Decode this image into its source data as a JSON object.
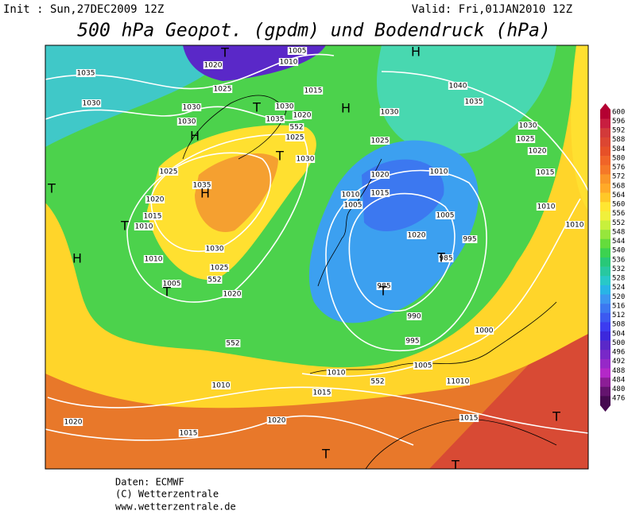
{
  "header": {
    "init": "Init : Sun,27DEC2009  12Z",
    "valid": "Valid: Fri,01JAN2010  12Z",
    "title": "500 hPa Geopot. (gpdm) und Bodendruck (hPa)"
  },
  "map": {
    "isobar_labels": [
      "1035",
      "1030",
      "1020",
      "1025",
      "1030",
      "1030",
      "1005",
      "1010",
      "1015",
      "1035",
      "1030",
      "1020",
      "1025",
      "1030",
      "1025",
      "1035",
      "1020",
      "1015",
      "1010",
      "1010",
      "1030",
      "1025",
      "1005",
      "1020",
      "1030",
      "1025",
      "1020",
      "1010",
      "1010",
      "1015",
      "1005",
      "1005",
      "1020",
      "995",
      "985",
      "985",
      "990",
      "995",
      "1000",
      "1005",
      "1010",
      "1015",
      "11010",
      "1015",
      "1010",
      "1020",
      "1015",
      "1020",
      "1040",
      "1035",
      "1030",
      "1025",
      "1020",
      "1015",
      "1010",
      "1010",
      "552",
      "552",
      "552",
      "552"
    ],
    "pressure_centers": [
      "H",
      "H",
      "H",
      "H",
      "H",
      "T",
      "T",
      "T",
      "T",
      "T",
      "T",
      "T",
      "T",
      "T",
      "T",
      "T"
    ]
  },
  "colorbar": {
    "labels": [
      "600",
      "596",
      "592",
      "588",
      "584",
      "580",
      "576",
      "572",
      "568",
      "564",
      "560",
      "556",
      "552",
      "548",
      "544",
      "540",
      "536",
      "532",
      "528",
      "524",
      "520",
      "516",
      "512",
      "508",
      "504",
      "500",
      "496",
      "492",
      "488",
      "484",
      "480",
      "476"
    ]
  },
  "footer": {
    "source": "Daten: ECMWF",
    "copyright": "(C) Wetterzentrale",
    "url": "www.wetterzentrale.de"
  }
}
